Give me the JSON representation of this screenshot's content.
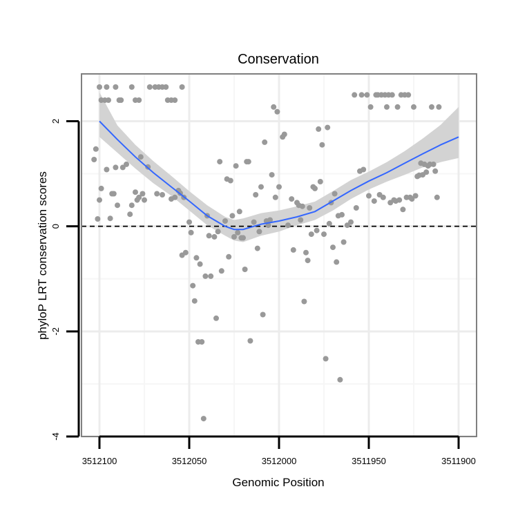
{
  "chart_data": {
    "type": "scatter",
    "title": "Conservation",
    "xlabel": "Genomic Position",
    "ylabel": "phyloP LRT conservation scores",
    "x_reversed": true,
    "xlim": [
      3512110,
      3511890
    ],
    "ylim": [
      -4,
      2.9
    ],
    "x_ticks": [
      3512100,
      3512050,
      3512000,
      3511950,
      3511900
    ],
    "x_tick_labels": [
      "3512100",
      "3512050",
      "3512000",
      "3511950",
      "3511900"
    ],
    "y_ticks": [
      -4,
      -2,
      0,
      2
    ],
    "y_tick_labels": [
      "-4",
      "-2",
      "0",
      "2"
    ],
    "grid": true,
    "reference_line": {
      "y": 0,
      "style": "dashed"
    },
    "colors": {
      "points": "#999999",
      "smooth_line": "#3366ff",
      "confidence_band": "#d3d3d3",
      "panel_border": "#7f7f7f",
      "grid_major": "#ececec",
      "grid_minor": "#f6f6f6",
      "reference_line": "#000000"
    },
    "series": [
      {
        "kind": "points",
        "points": [
          [
            3512100,
            2.65
          ],
          [
            3512099,
            2.4
          ],
          [
            3512097,
            2.4
          ],
          [
            3512096,
            2.65
          ],
          [
            3512095,
            2.4
          ],
          [
            3512091,
            2.65
          ],
          [
            3512089,
            2.4
          ],
          [
            3512088,
            2.4
          ],
          [
            3512082,
            2.65
          ],
          [
            3512080,
            2.4
          ],
          [
            3512078,
            2.4
          ],
          [
            3512072,
            2.65
          ],
          [
            3512069,
            2.65
          ],
          [
            3512067,
            2.65
          ],
          [
            3512065,
            2.65
          ],
          [
            3512063,
            2.65
          ],
          [
            3512062,
            2.4
          ],
          [
            3512060,
            2.4
          ],
          [
            3512058,
            2.4
          ],
          [
            3512054,
            2.65
          ],
          [
            3512103,
            1.27
          ],
          [
            3512102,
            1.47
          ],
          [
            3512101,
            0.14
          ],
          [
            3512100,
            0.5
          ],
          [
            3512099,
            0.72
          ],
          [
            3512096,
            1.08
          ],
          [
            3512094,
            0.15
          ],
          [
            3512093,
            0.62
          ],
          [
            3512092,
            0.62
          ],
          [
            3512091,
            1.12
          ],
          [
            3512090,
            0.4
          ],
          [
            3512087,
            1.12
          ],
          [
            3512085,
            1.18
          ],
          [
            3512083,
            0.23
          ],
          [
            3512082,
            0.4
          ],
          [
            3512080,
            0.65
          ],
          [
            3512079,
            0.5
          ],
          [
            3512078,
            0.55
          ],
          [
            3512077,
            1.32
          ],
          [
            3512076,
            0.62
          ],
          [
            3512075,
            0.5
          ],
          [
            3512073,
            1.13
          ],
          [
            3512068,
            0.62
          ],
          [
            3512065,
            0.6
          ],
          [
            3512060,
            0.52
          ],
          [
            3512058,
            0.55
          ],
          [
            3512056,
            0.68
          ],
          [
            3512055,
            0.63
          ],
          [
            3512054,
            -0.55
          ],
          [
            3512053,
            0.55
          ],
          [
            3512052,
            -0.5
          ],
          [
            3512050,
            0.08
          ],
          [
            3512049,
            -0.12
          ],
          [
            3512048,
            -1.13
          ],
          [
            3512047,
            -1.42
          ],
          [
            3512046,
            -0.6
          ],
          [
            3512045,
            -2.2
          ],
          [
            3512044,
            -0.72
          ],
          [
            3512043,
            -2.2
          ],
          [
            3512042,
            -3.66
          ],
          [
            3512041,
            -0.95
          ],
          [
            3512040,
            0.2
          ],
          [
            3512039,
            -0.18
          ],
          [
            3512038,
            -0.95
          ],
          [
            3512036,
            -0.2
          ],
          [
            3512035,
            -1.75
          ],
          [
            3512034,
            -0.1
          ],
          [
            3512033,
            1.23
          ],
          [
            3512032,
            -0.85
          ],
          [
            3512030,
            0.1
          ],
          [
            3512029,
            0.9
          ],
          [
            3512028,
            -0.58
          ],
          [
            3512027,
            0.87
          ],
          [
            3512026,
            0.2
          ],
          [
            3512025,
            -0.2
          ],
          [
            3512024,
            1.15
          ],
          [
            3512023,
            -0.12
          ],
          [
            3512022,
            0.28
          ],
          [
            3512021,
            -0.22
          ],
          [
            3512020,
            -0.22
          ],
          [
            3512019,
            -0.82
          ],
          [
            3512018,
            1.23
          ],
          [
            3512017,
            1.23
          ],
          [
            3512016,
            -2.18
          ],
          [
            3512014,
            0.08
          ],
          [
            3512013,
            0.6
          ],
          [
            3512012,
            -0.42
          ],
          [
            3512011,
            -0.1
          ],
          [
            3512010,
            0.75
          ],
          [
            3512009,
            -1.68
          ],
          [
            3512008,
            1.6
          ],
          [
            3512007,
            0.1
          ],
          [
            3512006,
            0.02
          ],
          [
            3512005,
            0.12
          ],
          [
            3512004,
            0.98
          ],
          [
            3512003,
            2.27
          ],
          [
            3512002,
            0.55
          ],
          [
            3512001,
            2.18
          ],
          [
            3512000,
            0.75
          ],
          [
            3511998,
            1.7
          ],
          [
            3511997,
            1.75
          ],
          [
            3511995,
            0.02
          ],
          [
            3511993,
            0.52
          ],
          [
            3511992,
            -0.45
          ],
          [
            3511990,
            0.45
          ],
          [
            3511989,
            0.4
          ],
          [
            3511988,
            0.12
          ],
          [
            3511987,
            0.38
          ],
          [
            3511986,
            -1.43
          ],
          [
            3511985,
            -0.5
          ],
          [
            3511984,
            -0.65
          ],
          [
            3511983,
            0.35
          ],
          [
            3511982,
            -0.15
          ],
          [
            3511981,
            0.75
          ],
          [
            3511980,
            0.72
          ],
          [
            3511979,
            -0.08
          ],
          [
            3511978,
            1.85
          ],
          [
            3511977,
            0.85
          ],
          [
            3511976,
            1.55
          ],
          [
            3511975,
            -0.15
          ],
          [
            3511974,
            -2.52
          ],
          [
            3511973,
            1.88
          ],
          [
            3511972,
            0.05
          ],
          [
            3511971,
            0.45
          ],
          [
            3511970,
            -0.4
          ],
          [
            3511969,
            0.62
          ],
          [
            3511968,
            -0.68
          ],
          [
            3511967,
            0.2
          ],
          [
            3511966,
            -2.92
          ],
          [
            3511965,
            0.22
          ],
          [
            3511964,
            -0.3
          ],
          [
            3511962,
            0.02
          ],
          [
            3511960,
            0.08
          ],
          [
            3511958,
            2.5
          ],
          [
            3511957,
            0.35
          ],
          [
            3511955,
            1.05
          ],
          [
            3511954,
            2.5
          ],
          [
            3511953,
            1.08
          ],
          [
            3511951,
            2.5
          ],
          [
            3511950,
            0.58
          ],
          [
            3511949,
            2.27
          ],
          [
            3511947,
            0.48
          ],
          [
            3511946,
            2.5
          ],
          [
            3511945,
            2.5
          ],
          [
            3511944,
            0.6
          ],
          [
            3511943,
            2.5
          ],
          [
            3511942,
            0.55
          ],
          [
            3511941,
            2.5
          ],
          [
            3511940,
            2.27
          ],
          [
            3511939,
            2.5
          ],
          [
            3511938,
            0.45
          ],
          [
            3511937,
            2.5
          ],
          [
            3511936,
            0.5
          ],
          [
            3511935,
            0.48
          ],
          [
            3511934,
            2.27
          ],
          [
            3511933,
            0.5
          ],
          [
            3511932,
            2.5
          ],
          [
            3511931,
            0.32
          ],
          [
            3511930,
            2.5
          ],
          [
            3511929,
            0.55
          ],
          [
            3511928,
            2.5
          ],
          [
            3511927,
            0.55
          ],
          [
            3511926,
            0.52
          ],
          [
            3511925,
            2.27
          ],
          [
            3511924,
            0.58
          ],
          [
            3511923,
            0.95
          ],
          [
            3511922,
            0.97
          ],
          [
            3511921,
            1.2
          ],
          [
            3511920,
            0.98
          ],
          [
            3511919,
            1.18
          ],
          [
            3511918,
            1.03
          ],
          [
            3511917,
            1.15
          ],
          [
            3511916,
            1.18
          ],
          [
            3511915,
            2.27
          ],
          [
            3511914,
            1.18
          ],
          [
            3511913,
            1.05
          ],
          [
            3511912,
            0.55
          ],
          [
            3511911,
            2.27
          ]
        ]
      },
      {
        "kind": "loess",
        "points": [
          [
            3512100,
            2.0
          ],
          [
            3512090,
            1.65
          ],
          [
            3512080,
            1.32
          ],
          [
            3512070,
            1.02
          ],
          [
            3512060,
            0.75
          ],
          [
            3512050,
            0.48
          ],
          [
            3512040,
            0.2
          ],
          [
            3512030,
            0.0
          ],
          [
            3512025,
            -0.06
          ],
          [
            3512020,
            -0.06
          ],
          [
            3512010,
            0.04
          ],
          [
            3512000,
            0.1
          ],
          [
            3511990,
            0.18
          ],
          [
            3511980,
            0.28
          ],
          [
            3511970,
            0.48
          ],
          [
            3511960,
            0.68
          ],
          [
            3511950,
            0.86
          ],
          [
            3511940,
            1.02
          ],
          [
            3511930,
            1.2
          ],
          [
            3511920,
            1.38
          ],
          [
            3511910,
            1.55
          ],
          [
            3511900,
            1.7
          ]
        ],
        "band": [
          [
            3512100,
            1.7,
            2.55
          ],
          [
            3512090,
            1.4,
            1.92
          ],
          [
            3512080,
            1.1,
            1.55
          ],
          [
            3512070,
            0.82,
            1.24
          ],
          [
            3512060,
            0.58,
            0.96
          ],
          [
            3512050,
            0.3,
            0.67
          ],
          [
            3512040,
            0.02,
            0.4
          ],
          [
            3512030,
            -0.18,
            0.18
          ],
          [
            3512025,
            -0.27,
            0.12
          ],
          [
            3512020,
            -0.3,
            0.15
          ],
          [
            3512010,
            -0.18,
            0.25
          ],
          [
            3512000,
            -0.1,
            0.3
          ],
          [
            3511990,
            0.02,
            0.38
          ],
          [
            3511980,
            0.12,
            0.47
          ],
          [
            3511970,
            0.3,
            0.67
          ],
          [
            3511960,
            0.52,
            0.88
          ],
          [
            3511950,
            0.7,
            1.04
          ],
          [
            3511940,
            0.85,
            1.22
          ],
          [
            3511930,
            0.98,
            1.43
          ],
          [
            3511920,
            1.12,
            1.67
          ],
          [
            3511910,
            1.22,
            1.93
          ],
          [
            3511900,
            1.3,
            2.27
          ]
        ]
      }
    ]
  }
}
